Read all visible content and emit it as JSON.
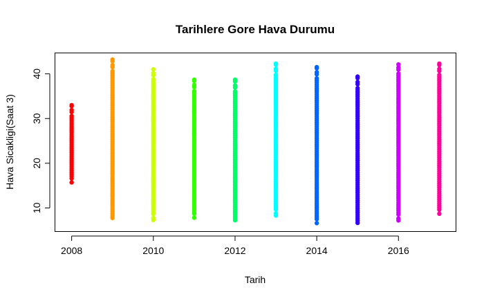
{
  "chart_data": {
    "type": "scatter",
    "title": "Tarihlere Gore Hava Durumu",
    "xlabel": "Tarih",
    "ylabel": "Hava Sicakligi(Saat 3)",
    "xlim": [
      2007.6,
      2017.4
    ],
    "ylim": [
      4.8,
      44.6
    ],
    "x_ticks": [
      2008,
      2010,
      2012,
      2014,
      2016
    ],
    "y_ticks": [
      10,
      20,
      30,
      40
    ],
    "grid": false,
    "legend": "none",
    "series": [
      {
        "x": 2008,
        "min": 15.7,
        "max": 33.0,
        "color": "#ff0000"
      },
      {
        "x": 2009,
        "min": 7.3,
        "max": 43.2,
        "color": "#ff9900"
      },
      {
        "x": 2010,
        "min": 7.3,
        "max": 41.0,
        "color": "#ccff00"
      },
      {
        "x": 2011,
        "min": 7.8,
        "max": 38.7,
        "color": "#33ff00"
      },
      {
        "x": 2012,
        "min": 6.8,
        "max": 38.7,
        "color": "#00ff66"
      },
      {
        "x": 2013,
        "min": 8.3,
        "max": 42.3,
        "color": "#00ffff"
      },
      {
        "x": 2014,
        "min": 6.6,
        "max": 41.5,
        "color": "#0066ff"
      },
      {
        "x": 2015,
        "min": 6.2,
        "max": 39.4,
        "color": "#3300ff"
      },
      {
        "x": 2016,
        "min": 7.2,
        "max": 42.1,
        "color": "#cc00ff"
      },
      {
        "x": 2017,
        "min": 8.7,
        "max": 42.3,
        "color": "#ff0099"
      }
    ]
  }
}
